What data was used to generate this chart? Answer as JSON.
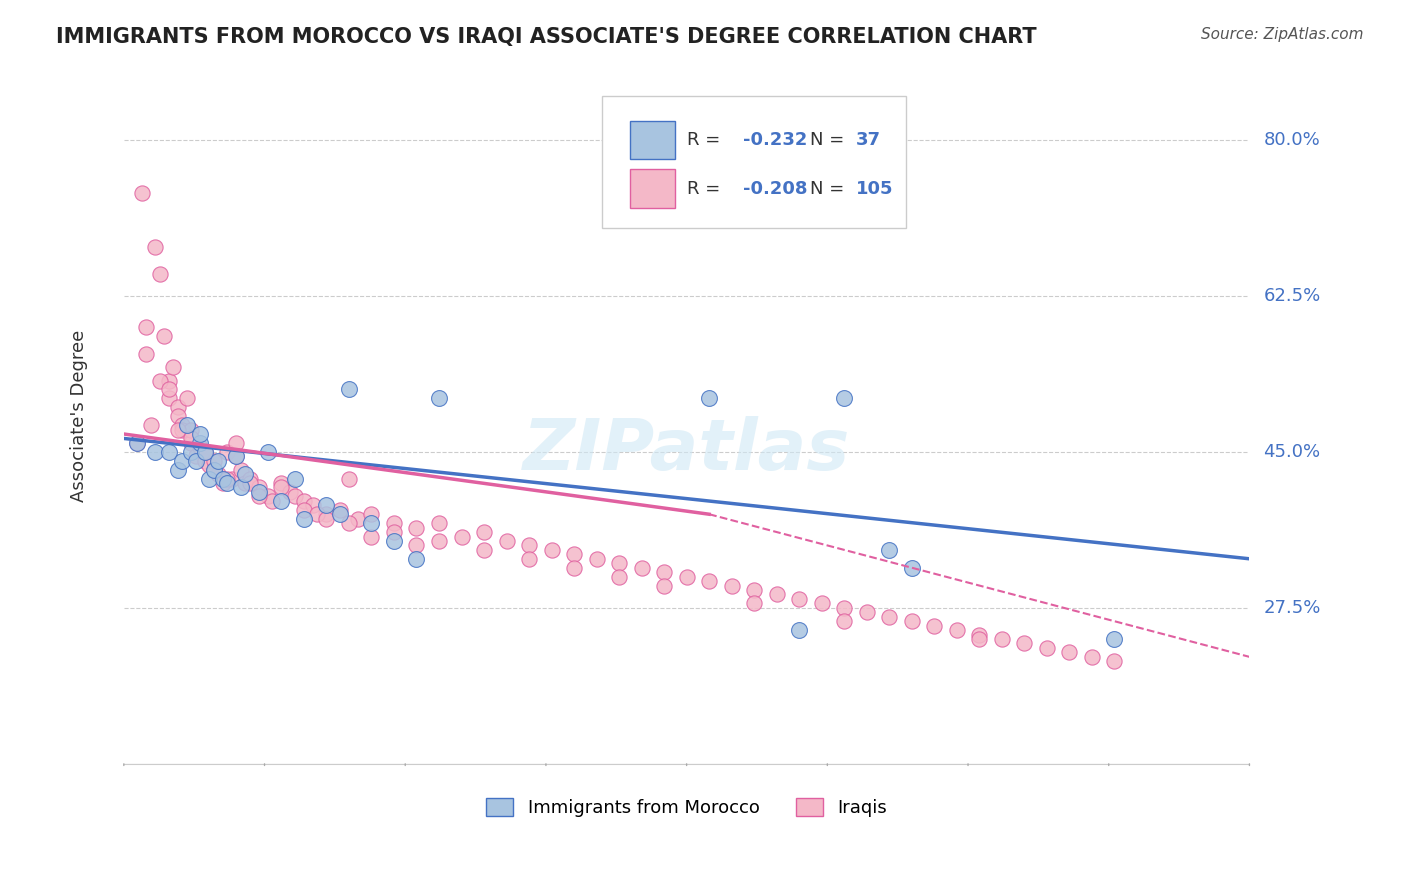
{
  "title": "IMMIGRANTS FROM MOROCCO VS IRAQI ASSOCIATE'S DEGREE CORRELATION CHART",
  "source": "Source: ZipAtlas.com",
  "ylabel": "Associate's Degree",
  "ytick_labels": [
    "80.0%",
    "62.5%",
    "45.0%",
    "27.5%"
  ],
  "ytick_values": [
    0.8,
    0.625,
    0.45,
    0.275
  ],
  "xlim": [
    0.0,
    0.25
  ],
  "ylim": [
    0.1,
    0.88
  ],
  "legend_r_blue": "-0.232",
  "legend_n_blue": "37",
  "legend_r_pink": "-0.208",
  "legend_n_pink": "105",
  "blue_color": "#a8c4e0",
  "pink_color": "#f4b8c8",
  "blue_line_color": "#4472c4",
  "pink_line_color": "#e060a0",
  "watermark": "ZIPatlas",
  "blue_x": [
    0.003,
    0.007,
    0.01,
    0.012,
    0.013,
    0.014,
    0.015,
    0.016,
    0.017,
    0.017,
    0.018,
    0.019,
    0.02,
    0.021,
    0.022,
    0.023,
    0.025,
    0.026,
    0.027,
    0.03,
    0.032,
    0.035,
    0.038,
    0.04,
    0.045,
    0.048,
    0.05,
    0.055,
    0.06,
    0.065,
    0.07,
    0.13,
    0.16,
    0.17,
    0.175,
    0.15,
    0.22
  ],
  "blue_y": [
    0.46,
    0.45,
    0.45,
    0.43,
    0.44,
    0.48,
    0.45,
    0.44,
    0.46,
    0.47,
    0.45,
    0.42,
    0.43,
    0.44,
    0.42,
    0.415,
    0.445,
    0.41,
    0.425,
    0.405,
    0.45,
    0.395,
    0.42,
    0.375,
    0.39,
    0.38,
    0.52,
    0.37,
    0.35,
    0.33,
    0.51,
    0.51,
    0.51,
    0.34,
    0.32,
    0.25,
    0.24
  ],
  "pink_x": [
    0.003,
    0.004,
    0.005,
    0.006,
    0.007,
    0.008,
    0.009,
    0.01,
    0.01,
    0.011,
    0.012,
    0.012,
    0.013,
    0.013,
    0.014,
    0.015,
    0.015,
    0.016,
    0.017,
    0.018,
    0.018,
    0.019,
    0.02,
    0.021,
    0.022,
    0.023,
    0.024,
    0.025,
    0.026,
    0.027,
    0.028,
    0.03,
    0.032,
    0.033,
    0.035,
    0.037,
    0.038,
    0.04,
    0.042,
    0.045,
    0.048,
    0.05,
    0.052,
    0.055,
    0.06,
    0.065,
    0.07,
    0.075,
    0.08,
    0.085,
    0.09,
    0.095,
    0.1,
    0.105,
    0.11,
    0.115,
    0.12,
    0.125,
    0.13,
    0.135,
    0.14,
    0.145,
    0.15,
    0.155,
    0.16,
    0.165,
    0.17,
    0.175,
    0.18,
    0.185,
    0.19,
    0.195,
    0.2,
    0.205,
    0.21,
    0.215,
    0.22,
    0.005,
    0.008,
    0.01,
    0.012,
    0.015,
    0.018,
    0.02,
    0.023,
    0.025,
    0.028,
    0.03,
    0.035,
    0.04,
    0.043,
    0.045,
    0.05,
    0.055,
    0.06,
    0.065,
    0.07,
    0.08,
    0.09,
    0.1,
    0.11,
    0.12,
    0.14,
    0.16,
    0.19
  ],
  "pink_y": [
    0.46,
    0.74,
    0.59,
    0.48,
    0.68,
    0.65,
    0.58,
    0.51,
    0.53,
    0.545,
    0.5,
    0.49,
    0.48,
    0.475,
    0.51,
    0.46,
    0.475,
    0.445,
    0.455,
    0.44,
    0.45,
    0.435,
    0.44,
    0.425,
    0.415,
    0.45,
    0.42,
    0.46,
    0.43,
    0.415,
    0.42,
    0.41,
    0.4,
    0.395,
    0.415,
    0.405,
    0.4,
    0.395,
    0.39,
    0.38,
    0.385,
    0.42,
    0.375,
    0.38,
    0.37,
    0.365,
    0.37,
    0.355,
    0.36,
    0.35,
    0.345,
    0.34,
    0.335,
    0.33,
    0.325,
    0.32,
    0.315,
    0.31,
    0.305,
    0.3,
    0.295,
    0.29,
    0.285,
    0.28,
    0.275,
    0.27,
    0.265,
    0.26,
    0.255,
    0.25,
    0.245,
    0.24,
    0.235,
    0.23,
    0.225,
    0.22,
    0.215,
    0.56,
    0.53,
    0.52,
    0.475,
    0.465,
    0.45,
    0.43,
    0.42,
    0.445,
    0.415,
    0.4,
    0.41,
    0.385,
    0.38,
    0.375,
    0.37,
    0.355,
    0.36,
    0.345,
    0.35,
    0.34,
    0.33,
    0.32,
    0.31,
    0.3,
    0.28,
    0.26,
    0.24
  ]
}
